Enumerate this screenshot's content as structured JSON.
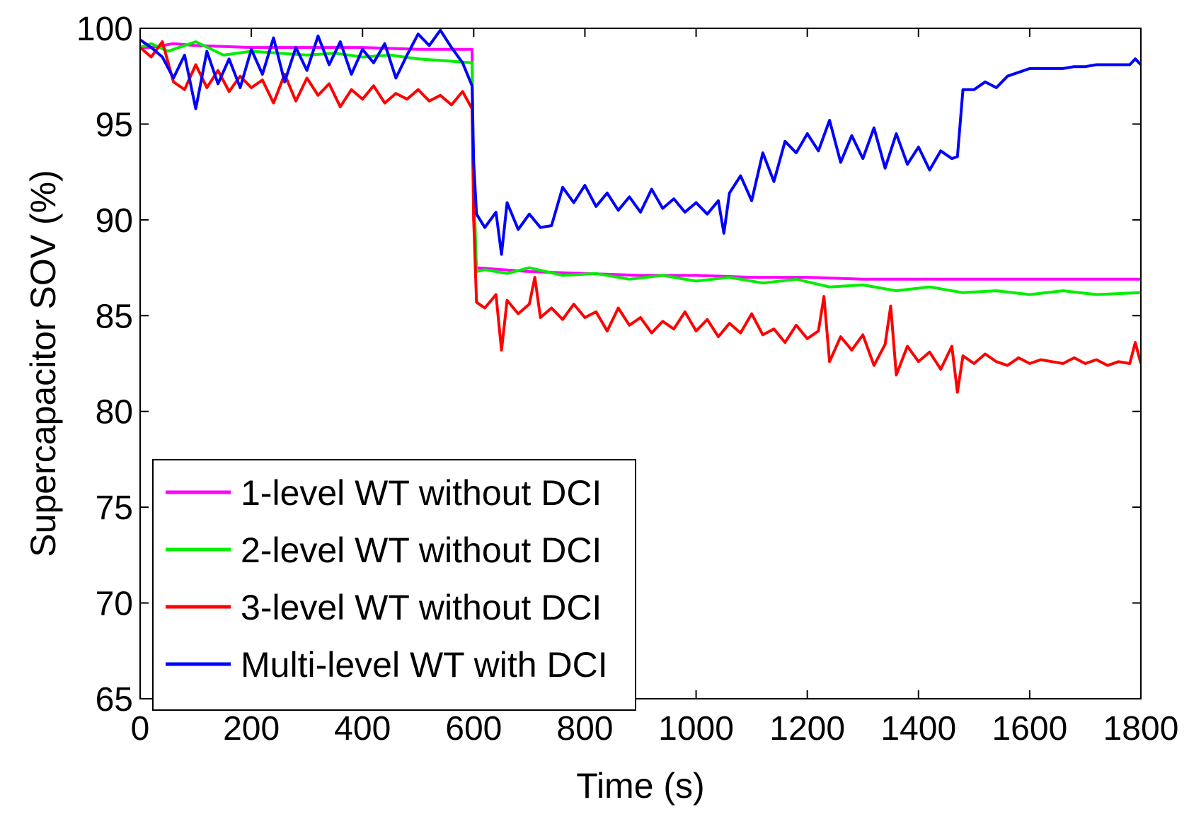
{
  "chart_data": {
    "type": "line",
    "title": "",
    "xlabel": "Time (s)",
    "ylabel": "Supercapacitor SOV (%)",
    "xlim": [
      0,
      1800
    ],
    "ylim": [
      65,
      100
    ],
    "xticks": [
      0,
      200,
      400,
      600,
      800,
      1000,
      1200,
      1400,
      1600,
      1800
    ],
    "yticks": [
      65,
      70,
      75,
      80,
      85,
      90,
      95,
      100
    ],
    "grid": false,
    "legend_position": "bottom-left",
    "series": [
      {
        "name": "1-level WT without DCI",
        "color": "#ff00ff",
        "x": [
          0,
          20,
          60,
          100,
          200,
          300,
          400,
          500,
          597,
          600,
          605,
          700,
          800,
          900,
          1000,
          1100,
          1200,
          1300,
          1400,
          1500,
          1600,
          1700,
          1800
        ],
        "y": [
          99,
          99,
          99.2,
          99.1,
          99,
          99,
          99,
          98.9,
          98.9,
          90,
          87.5,
          87.3,
          87.2,
          87.1,
          87.1,
          87.0,
          87.0,
          86.9,
          86.9,
          86.9,
          86.9,
          86.9,
          86.9
        ]
      },
      {
        "name": "2-level WT without DCI",
        "color": "#00ee00",
        "x": [
          0,
          20,
          50,
          100,
          150,
          200,
          250,
          300,
          350,
          400,
          450,
          500,
          550,
          597,
          600,
          605,
          620,
          660,
          700,
          760,
          820,
          880,
          940,
          1000,
          1060,
          1120,
          1180,
          1240,
          1300,
          1360,
          1420,
          1480,
          1540,
          1600,
          1660,
          1720,
          1800
        ],
        "y": [
          99,
          99.2,
          98.8,
          99.3,
          98.6,
          98.8,
          98.7,
          98.6,
          98.7,
          98.5,
          98.6,
          98.4,
          98.3,
          98.2,
          92,
          87.3,
          87.4,
          87.2,
          87.5,
          87.1,
          87.2,
          86.9,
          87.1,
          86.8,
          87.0,
          86.7,
          86.9,
          86.5,
          86.6,
          86.3,
          86.5,
          86.2,
          86.3,
          86.1,
          86.3,
          86.1,
          86.2
        ]
      },
      {
        "name": "3-level WT without DCI",
        "color": "#ff0000",
        "x": [
          0,
          20,
          40,
          60,
          80,
          100,
          120,
          140,
          160,
          180,
          200,
          220,
          240,
          260,
          280,
          300,
          320,
          340,
          360,
          380,
          400,
          420,
          440,
          460,
          480,
          500,
          520,
          540,
          560,
          580,
          597,
          600,
          605,
          620,
          640,
          650,
          660,
          680,
          700,
          710,
          720,
          740,
          760,
          780,
          800,
          820,
          840,
          860,
          880,
          900,
          920,
          940,
          960,
          980,
          1000,
          1020,
          1040,
          1060,
          1080,
          1100,
          1120,
          1140,
          1160,
          1180,
          1200,
          1220,
          1230,
          1240,
          1260,
          1280,
          1300,
          1320,
          1340,
          1350,
          1360,
          1380,
          1400,
          1420,
          1440,
          1460,
          1470,
          1480,
          1500,
          1520,
          1540,
          1560,
          1580,
          1600,
          1620,
          1640,
          1660,
          1680,
          1700,
          1720,
          1740,
          1760,
          1780,
          1790,
          1800
        ],
        "y": [
          99,
          98.5,
          99.3,
          97.2,
          96.8,
          98.1,
          96.9,
          97.8,
          96.7,
          97.5,
          96.9,
          97.3,
          96.1,
          97.6,
          96.2,
          97.4,
          96.5,
          97.1,
          95.9,
          96.8,
          96.3,
          97.0,
          96.1,
          96.6,
          96.3,
          96.8,
          96.2,
          96.5,
          96.0,
          96.7,
          95.8,
          90,
          85.7,
          85.4,
          86.1,
          83.2,
          85.8,
          85.1,
          85.6,
          87.0,
          84.9,
          85.4,
          84.8,
          85.6,
          84.9,
          85.2,
          84.2,
          85.4,
          84.5,
          84.9,
          84.1,
          84.7,
          84.3,
          85.2,
          84.2,
          84.8,
          83.9,
          84.6,
          84.1,
          85.1,
          84.0,
          84.3,
          83.6,
          84.5,
          83.8,
          84.2,
          86.0,
          82.6,
          83.9,
          83.2,
          84.0,
          82.4,
          83.5,
          85.5,
          81.9,
          83.4,
          82.6,
          83.1,
          82.2,
          83.4,
          81.0,
          82.9,
          82.5,
          83.0,
          82.6,
          82.4,
          82.8,
          82.5,
          82.7,
          82.6,
          82.5,
          82.8,
          82.5,
          82.7,
          82.4,
          82.6,
          82.5,
          83.6,
          82.5
        ]
      },
      {
        "name": "Multi-level WT with DCI",
        "color": "#0000ff",
        "x": [
          0,
          20,
          40,
          60,
          80,
          100,
          120,
          140,
          160,
          180,
          200,
          220,
          240,
          260,
          280,
          300,
          320,
          340,
          360,
          380,
          400,
          420,
          440,
          460,
          480,
          500,
          520,
          540,
          560,
          580,
          597,
          600,
          605,
          620,
          640,
          650,
          660,
          680,
          700,
          720,
          740,
          760,
          780,
          800,
          820,
          840,
          860,
          880,
          900,
          920,
          940,
          960,
          980,
          1000,
          1020,
          1040,
          1050,
          1060,
          1080,
          1100,
          1120,
          1140,
          1160,
          1180,
          1200,
          1220,
          1240,
          1260,
          1280,
          1300,
          1320,
          1340,
          1360,
          1380,
          1400,
          1420,
          1440,
          1460,
          1470,
          1480,
          1500,
          1520,
          1540,
          1560,
          1580,
          1600,
          1620,
          1640,
          1660,
          1680,
          1700,
          1720,
          1740,
          1760,
          1780,
          1790,
          1800
        ],
        "y": [
          99.4,
          99.0,
          98.5,
          97.4,
          98.6,
          95.8,
          98.8,
          97.1,
          98.4,
          96.9,
          98.9,
          97.6,
          99.5,
          97.2,
          99.0,
          97.8,
          99.6,
          98.1,
          99.3,
          97.6,
          98.9,
          98.2,
          99.2,
          97.4,
          98.6,
          99.7,
          99.1,
          99.9,
          99.0,
          98.2,
          97.0,
          93,
          90.3,
          89.6,
          90.4,
          88.2,
          90.9,
          89.5,
          90.3,
          89.6,
          89.7,
          91.7,
          90.9,
          91.8,
          90.7,
          91.4,
          90.5,
          91.2,
          90.4,
          91.6,
          90.6,
          91.1,
          90.4,
          90.9,
          90.3,
          91.0,
          89.3,
          91.4,
          92.3,
          91.0,
          93.5,
          92.0,
          94.1,
          93.5,
          94.5,
          93.6,
          95.2,
          93.0,
          94.4,
          93.2,
          94.8,
          92.7,
          94.5,
          92.9,
          93.8,
          92.6,
          93.6,
          93.2,
          93.3,
          96.8,
          96.8,
          97.2,
          96.9,
          97.5,
          97.7,
          97.9,
          97.9,
          97.9,
          97.9,
          98.0,
          98.0,
          98.1,
          98.1,
          98.1,
          98.1,
          98.4,
          98.1
        ]
      }
    ]
  }
}
